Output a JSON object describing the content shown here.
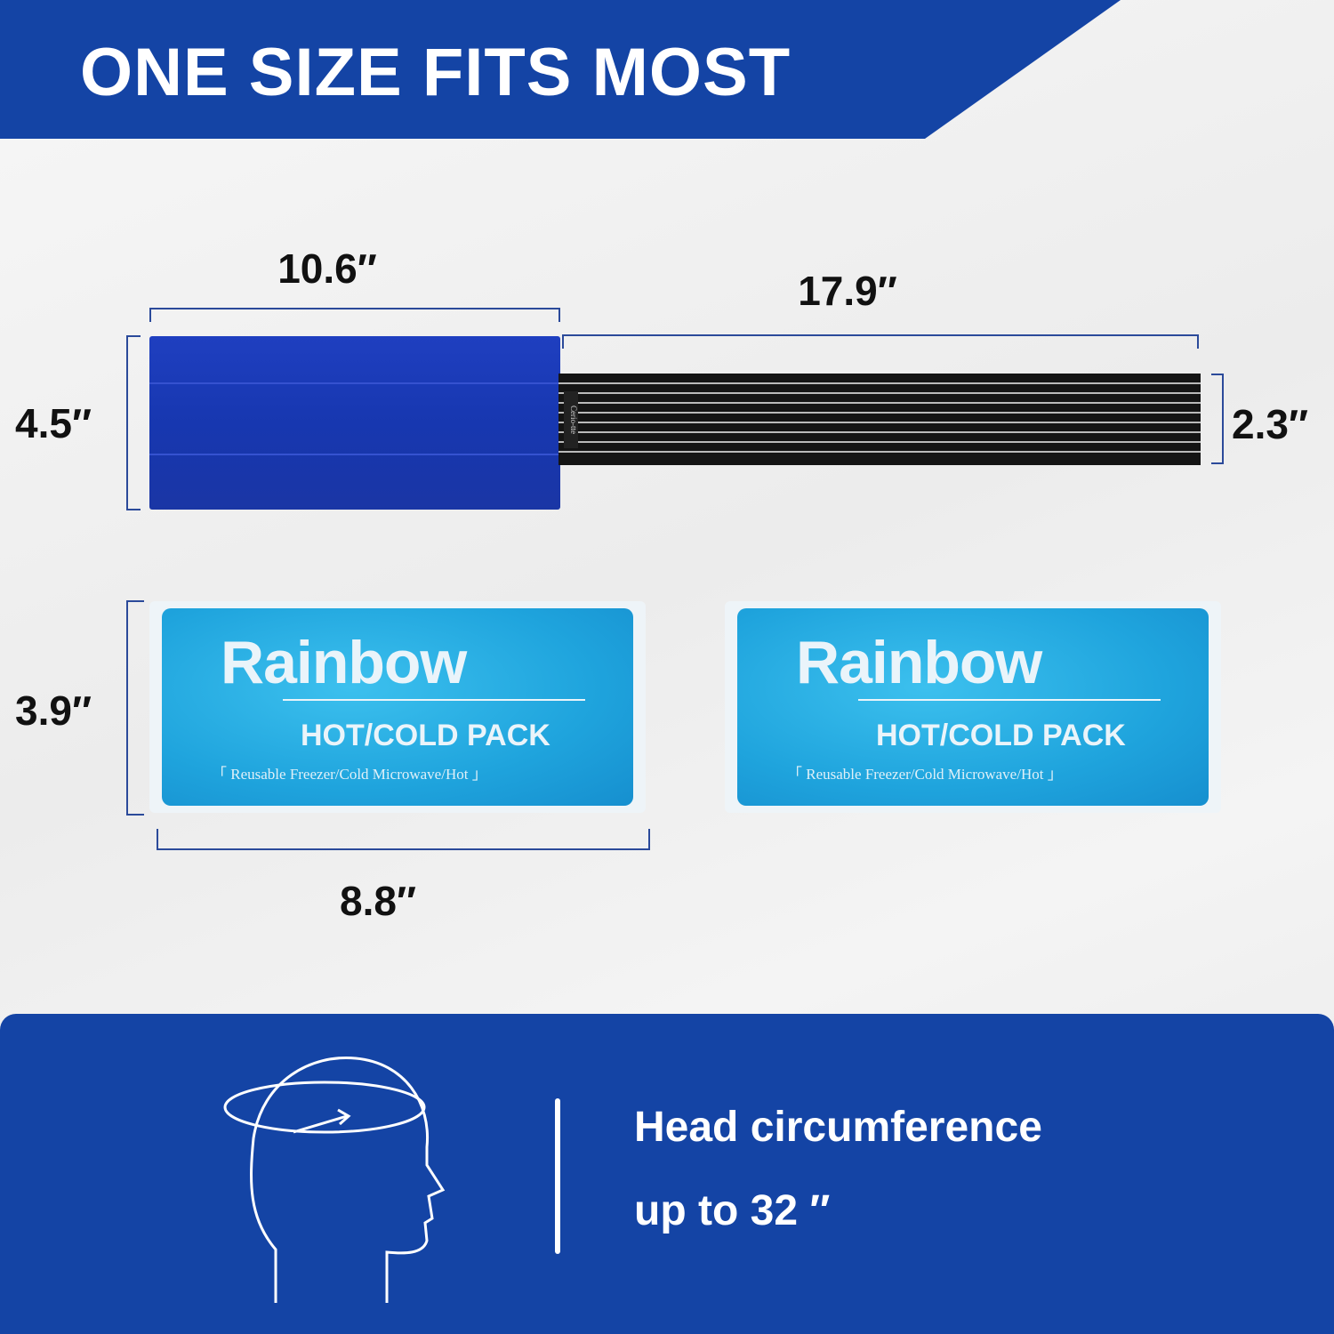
{
  "header": {
    "title": "ONE SIZE FITS MOST"
  },
  "dimensions": {
    "wrap_width": "10.6″",
    "wrap_height": "4.5″",
    "strap_length": "17.9″",
    "strap_width": "2.3″",
    "pack_height": "3.9″",
    "pack_width": "8.8″"
  },
  "strap": {
    "brand": "Cerio-tte"
  },
  "packs": [
    {
      "brand": "Rainbow",
      "label": "HOT/COLD PACK",
      "sub": "「 Reusable Freezer/Cold Microwave/Hot 」"
    },
    {
      "brand": "Rainbow",
      "label": "HOT/COLD PACK",
      "sub": "「 Reusable Freezer/Cold Microwave/Hot 」"
    }
  ],
  "footer": {
    "line1": "Head circumference",
    "line2": "up to 32 ″",
    "icon": "head-circumference-icon"
  },
  "colors": {
    "brand_blue": "#1444a5",
    "wrap_blue": "#1a3ab5",
    "gel_blue": "#1fa4dd"
  }
}
